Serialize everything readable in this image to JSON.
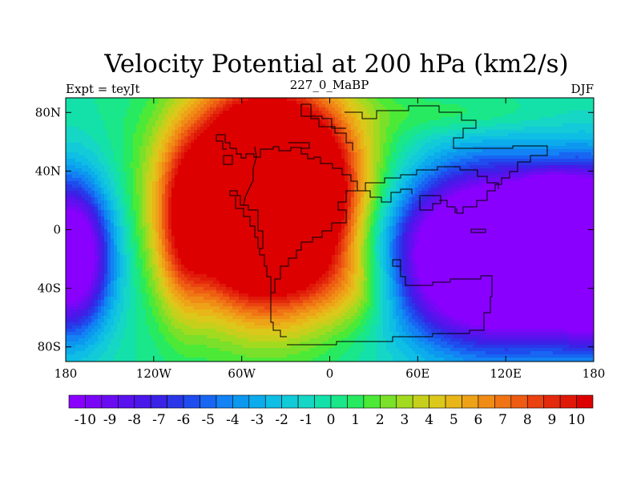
{
  "chart_data": {
    "type": "heatmap",
    "title": "Velocity Potential at 200 hPa (km2/s)",
    "left_label": "Expt = teyJt",
    "center_label": "227_0_MaBP",
    "right_label": "DJF",
    "xlim": [
      -180,
      180
    ],
    "ylim": [
      -90,
      90
    ],
    "x_ticks": [
      {
        "value": -180,
        "label": "180"
      },
      {
        "value": -120,
        "label": "120W"
      },
      {
        "value": -60,
        "label": "60W"
      },
      {
        "value": 0,
        "label": "0"
      },
      {
        "value": 60,
        "label": "60E"
      },
      {
        "value": 120,
        "label": "120E"
      },
      {
        "value": 180,
        "label": "180"
      }
    ],
    "y_ticks": [
      {
        "value": 80,
        "label": "80N"
      },
      {
        "value": 40,
        "label": "40N"
      },
      {
        "value": 0,
        "label": "0"
      },
      {
        "value": -40,
        "label": "40S"
      },
      {
        "value": -80,
        "label": "80S"
      }
    ],
    "contour_levels": [
      -10,
      -9.5,
      -9,
      -8.5,
      -8,
      -7.5,
      -7,
      -6.5,
      -6,
      -5.5,
      -5,
      -4.5,
      -4,
      -3.5,
      -3,
      -2.5,
      -2,
      -1.5,
      -1,
      -0.5,
      0,
      0.5,
      1,
      1.5,
      2,
      2.5,
      3,
      3.5,
      4,
      4.5,
      5,
      5.5,
      6,
      6.5,
      7,
      7.5,
      8,
      8.5,
      9,
      9.5,
      10
    ],
    "colorbar_labels": [
      "-10",
      "-9",
      "-8",
      "-7",
      "-6",
      "-5",
      "-4",
      "-3",
      "-2",
      "-1",
      "0",
      "1",
      "2",
      "3",
      "4",
      "5",
      "6",
      "7",
      "8",
      "9",
      "10"
    ],
    "colorbar_colors": [
      "#8a00ff",
      "#7a06f8",
      "#6a0cf2",
      "#5a12ee",
      "#4a18ea",
      "#3a22e6",
      "#2a36e8",
      "#1f4cee",
      "#1866f2",
      "#1282f4",
      "#0c98ee",
      "#0cacec",
      "#0ebee4",
      "#12cad8",
      "#16d6c6",
      "#14e0aa",
      "#1ae68a",
      "#28ea60",
      "#4cea36",
      "#7ae02a",
      "#a2da20",
      "#c6d01c",
      "#dcc81a",
      "#e8b618",
      "#eea218",
      "#f08c16",
      "#f07414",
      "#ee5c12",
      "#ea4210",
      "#e42a0c",
      "#e01808",
      "#dc0000"
    ],
    "field_features": [
      {
        "name": "maximum",
        "lon": -40,
        "lat": 20,
        "value": 10
      },
      {
        "name": "minimum",
        "lon": 120,
        "lat": -15,
        "value": -10
      },
      {
        "name": "minimum",
        "lon": -175,
        "lat": -20,
        "value": -10
      }
    ]
  }
}
